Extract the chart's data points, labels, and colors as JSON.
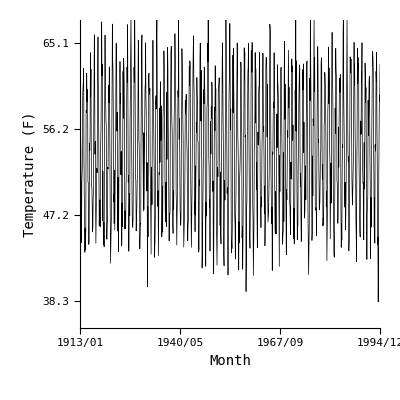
{
  "title": "",
  "xlabel": "Month",
  "ylabel": "Temperature (F)",
  "start_year": 1913,
  "start_month": 1,
  "end_year": 1994,
  "end_month": 12,
  "ylim": [
    35.5,
    67.5
  ],
  "yticks": [
    38.3,
    47.2,
    56.2,
    65.1
  ],
  "xtick_labels": [
    "1913/01",
    "1940/05",
    "1967/09",
    "1994/12"
  ],
  "line_color": "#000000",
  "line_width": 0.5,
  "bg_color": "#ffffff",
  "mean_temp": 54.0,
  "amplitude": 9.0,
  "noise_std": 2.8,
  "figsize": [
    4.0,
    4.0
  ],
  "dpi": 100
}
